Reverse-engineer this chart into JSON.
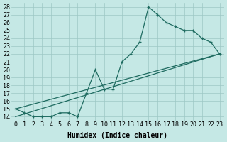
{
  "xlabel": "Humidex (Indice chaleur)",
  "xlim": [
    -0.5,
    23.5
  ],
  "ylim": [
    13.5,
    28.5
  ],
  "xticks": [
    0,
    1,
    2,
    3,
    4,
    5,
    6,
    7,
    8,
    9,
    10,
    11,
    12,
    13,
    14,
    15,
    16,
    17,
    18,
    19,
    20,
    21,
    22,
    23
  ],
  "yticks": [
    14,
    15,
    16,
    17,
    18,
    19,
    20,
    21,
    22,
    23,
    24,
    25,
    26,
    27,
    28
  ],
  "bg_color": "#c5e8e5",
  "grid_color": "#9dc8c4",
  "line_color": "#1e6b60",
  "curve1_x": [
    0,
    1,
    2,
    3,
    4,
    5,
    6,
    7,
    8,
    9,
    10,
    11,
    12,
    13,
    14,
    15,
    16,
    17,
    18,
    19,
    20,
    21,
    22,
    23
  ],
  "curve1_y": [
    15,
    14.5,
    14,
    14,
    14,
    14.5,
    14.5,
    14,
    17,
    20,
    17.5,
    17.5,
    21,
    22,
    23.5,
    28,
    27,
    26,
    25.5,
    25,
    25,
    24,
    23.5,
    22
  ],
  "line1_x": [
    0,
    23
  ],
  "line1_y": [
    15,
    22
  ],
  "line2_x": [
    0,
    23
  ],
  "line2_y": [
    14,
    22
  ],
  "font_family": "monospace",
  "tick_fontsize": 6,
  "label_fontsize": 7
}
